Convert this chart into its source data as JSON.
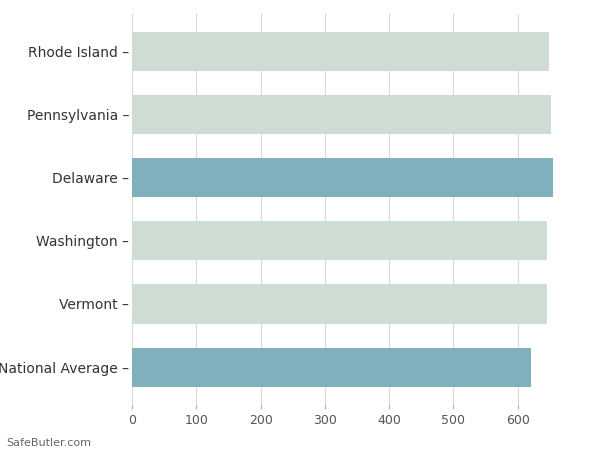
{
  "categories": [
    "Rhode Island",
    "Pennsylvania",
    "Delaware",
    "Washington",
    "Vermont",
    "National Average"
  ],
  "values": [
    649,
    651,
    655,
    645,
    646,
    621
  ],
  "bar_colors": [
    "#cdddd4",
    "#cdddd4",
    "#7fb0bc",
    "#cdddd4",
    "#cdddd4",
    "#7fb0bc"
  ],
  "xlim": [
    0,
    700
  ],
  "xticks": [
    0,
    100,
    200,
    300,
    400,
    500,
    600
  ],
  "background_color": "#ffffff",
  "grid_color": "#d8d8d8",
  "footer_text": "SafeButler.com",
  "bar_height": 0.62,
  "label_fontsize": 10,
  "tick_fontsize": 9,
  "footer_fontsize": 8
}
